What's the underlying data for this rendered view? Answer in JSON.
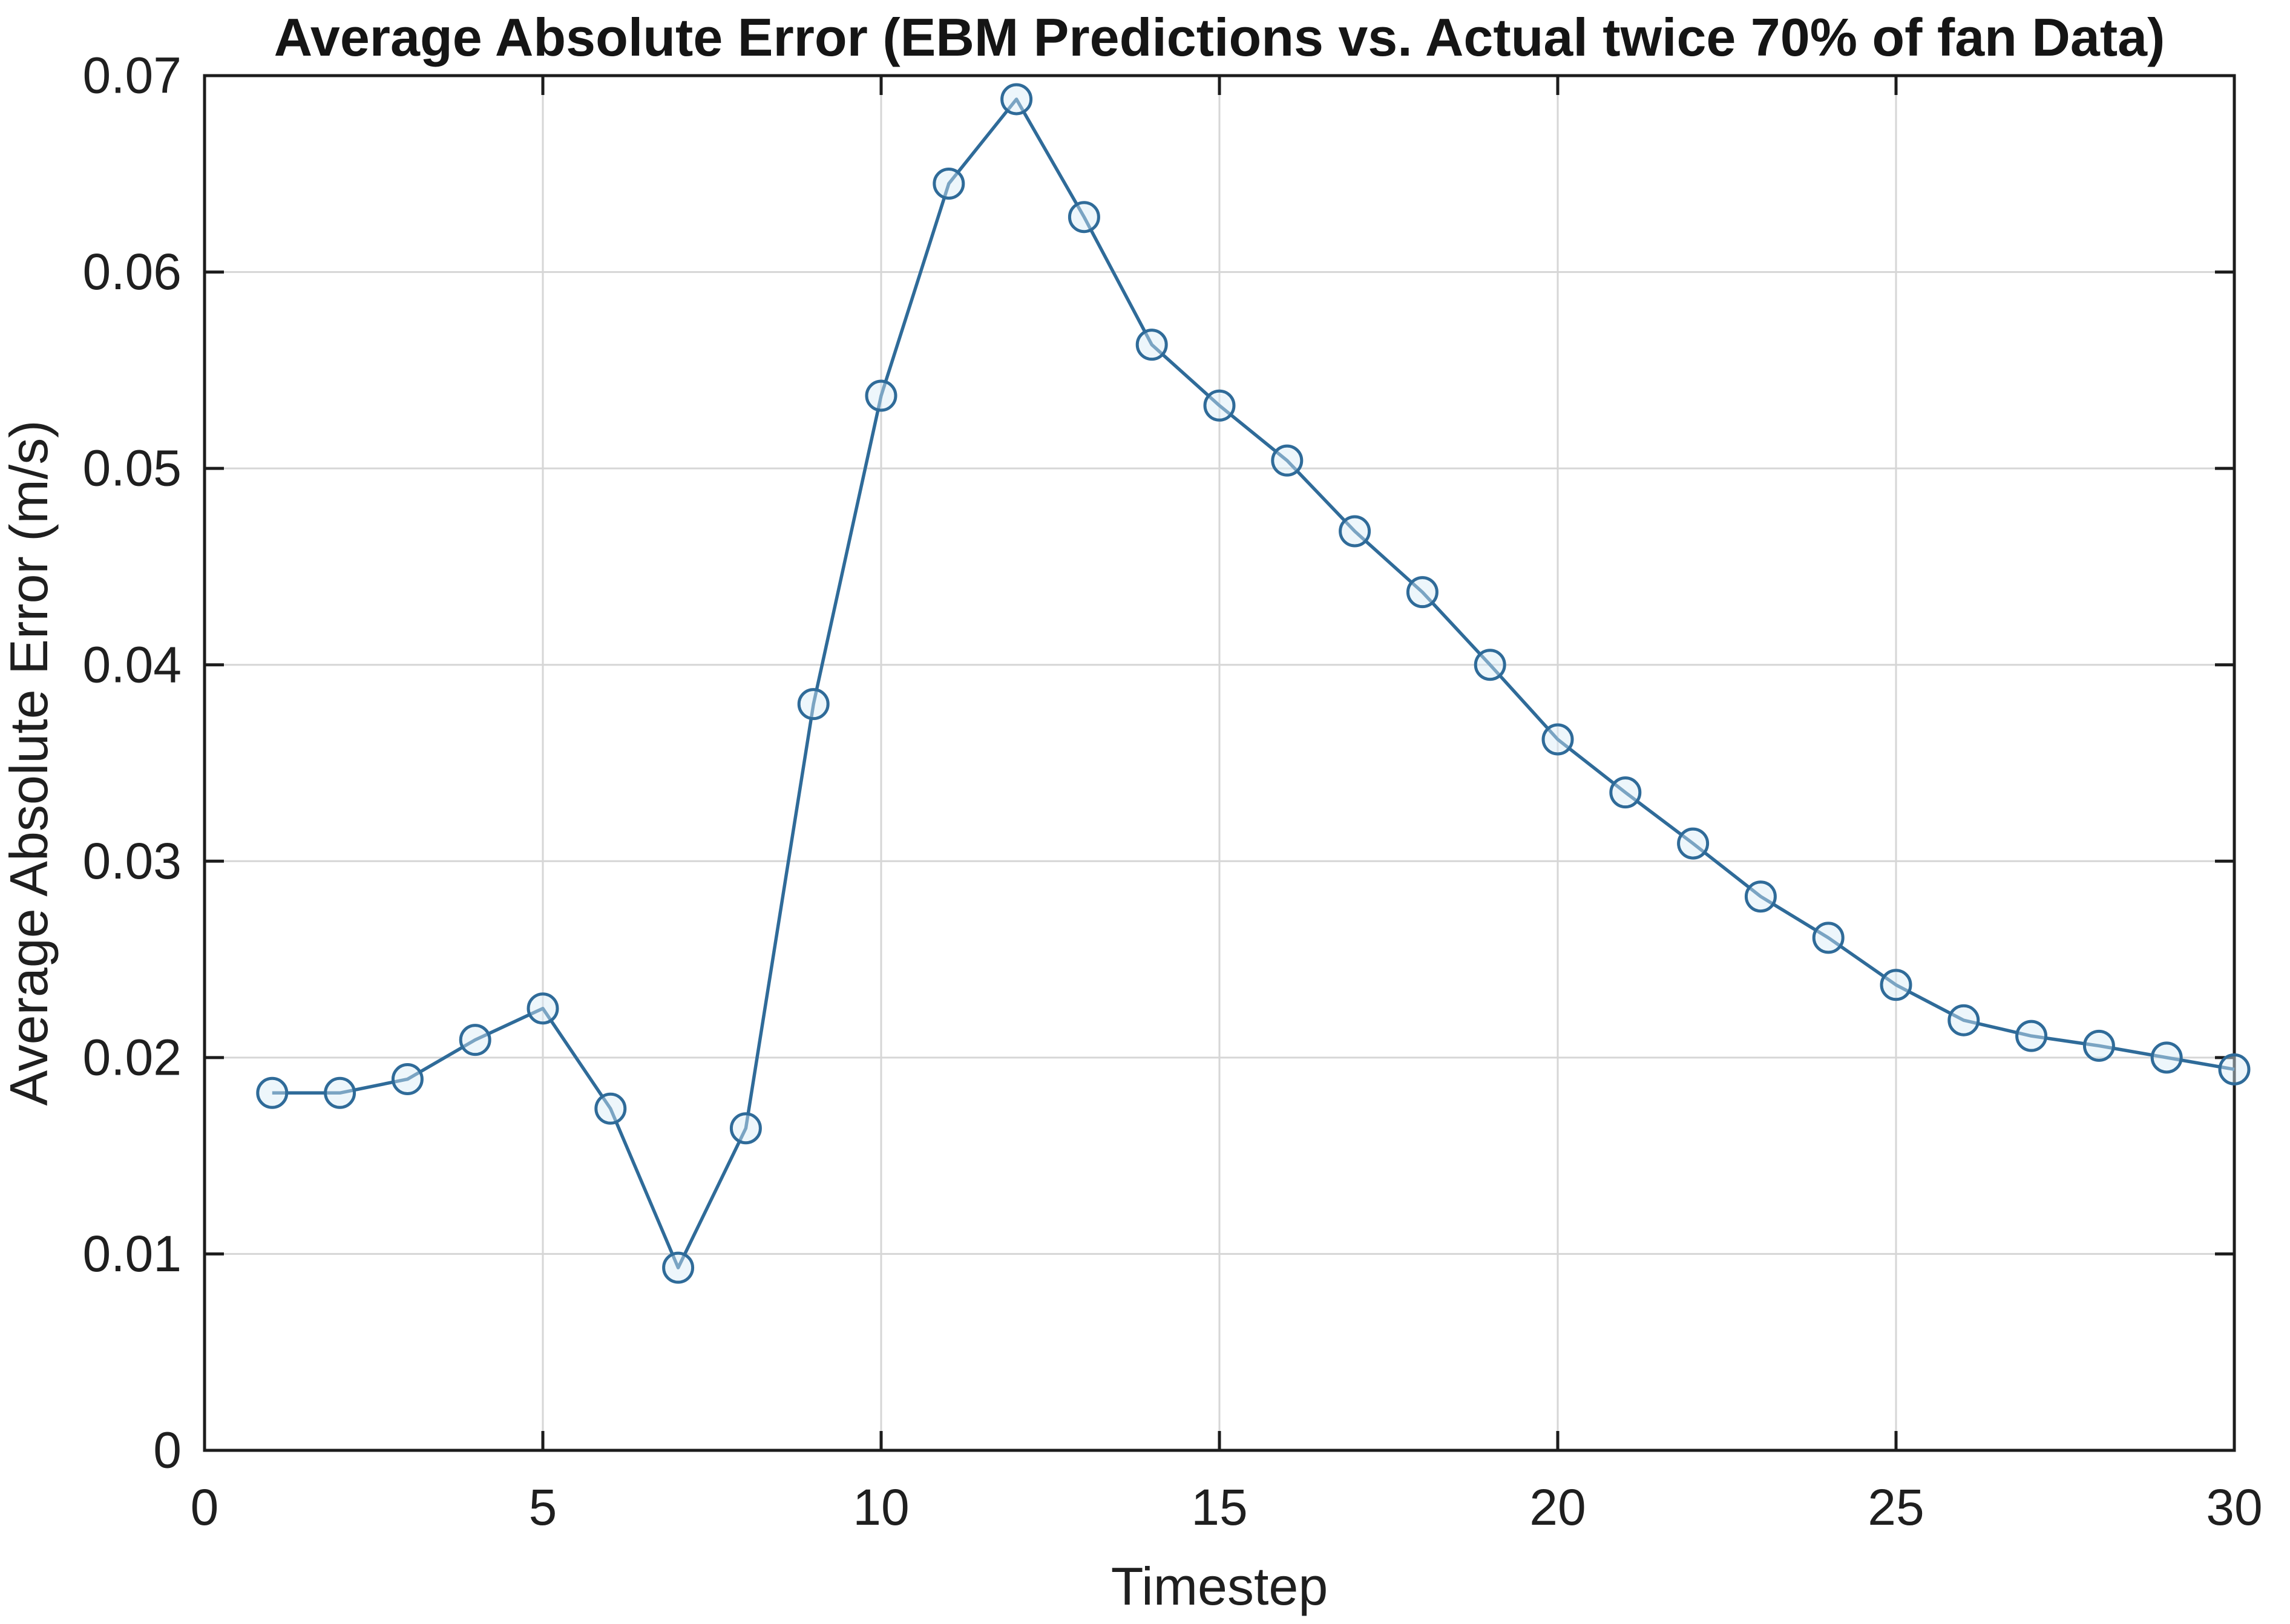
{
  "figure": {
    "background": "#ffffff"
  },
  "chart_data": {
    "type": "line",
    "title": "Average Absolute Error (EBM Predictions vs. Actual twice 70% of fan Data)",
    "xlabel": "Timestep",
    "ylabel": "Average Absolute Error (m/s)",
    "x": [
      1,
      2,
      3,
      4,
      5,
      6,
      7,
      8,
      9,
      10,
      11,
      12,
      13,
      14,
      15,
      16,
      17,
      18,
      19,
      20,
      21,
      22,
      23,
      24,
      25,
      26,
      27,
      28,
      29,
      30
    ],
    "series": [
      {
        "name": "Average Absolute Error",
        "marker": "circle",
        "values": [
          0.0182,
          0.0182,
          0.0189,
          0.0209,
          0.0225,
          0.0174,
          0.0093,
          0.0164,
          0.038,
          0.0537,
          0.0645,
          0.0688,
          0.0628,
          0.0563,
          0.0532,
          0.0504,
          0.0468,
          0.0437,
          0.04,
          0.0362,
          0.0335,
          0.0309,
          0.0282,
          0.0261,
          0.0237,
          0.0219,
          0.0211,
          0.0206,
          0.02,
          0.0194
        ]
      }
    ],
    "xlim": [
      0,
      30
    ],
    "ylim": [
      0,
      0.07
    ],
    "xticks": [
      0,
      5,
      10,
      15,
      20,
      25,
      30
    ],
    "xtick_labels": [
      "0",
      "5",
      "10",
      "15",
      "20",
      "25",
      "30"
    ],
    "yticks": [
      0,
      0.01,
      0.02,
      0.03,
      0.04,
      0.05,
      0.06,
      0.07
    ],
    "ytick_labels": [
      "0",
      "0.01",
      "0.02",
      "0.03",
      "0.04",
      "0.05",
      "0.06",
      "0.07"
    ],
    "grid": true,
    "legend": "none",
    "box": true,
    "tick_direction": "in"
  },
  "colors": {
    "line": "#2f6b99",
    "marker_edge": "#2f6b99",
    "marker_face": "#d8eaf6",
    "grid": "#d6d6d6",
    "axis": "#1c1c1c",
    "text": "#1f1f1f",
    "background": "#ffffff"
  }
}
